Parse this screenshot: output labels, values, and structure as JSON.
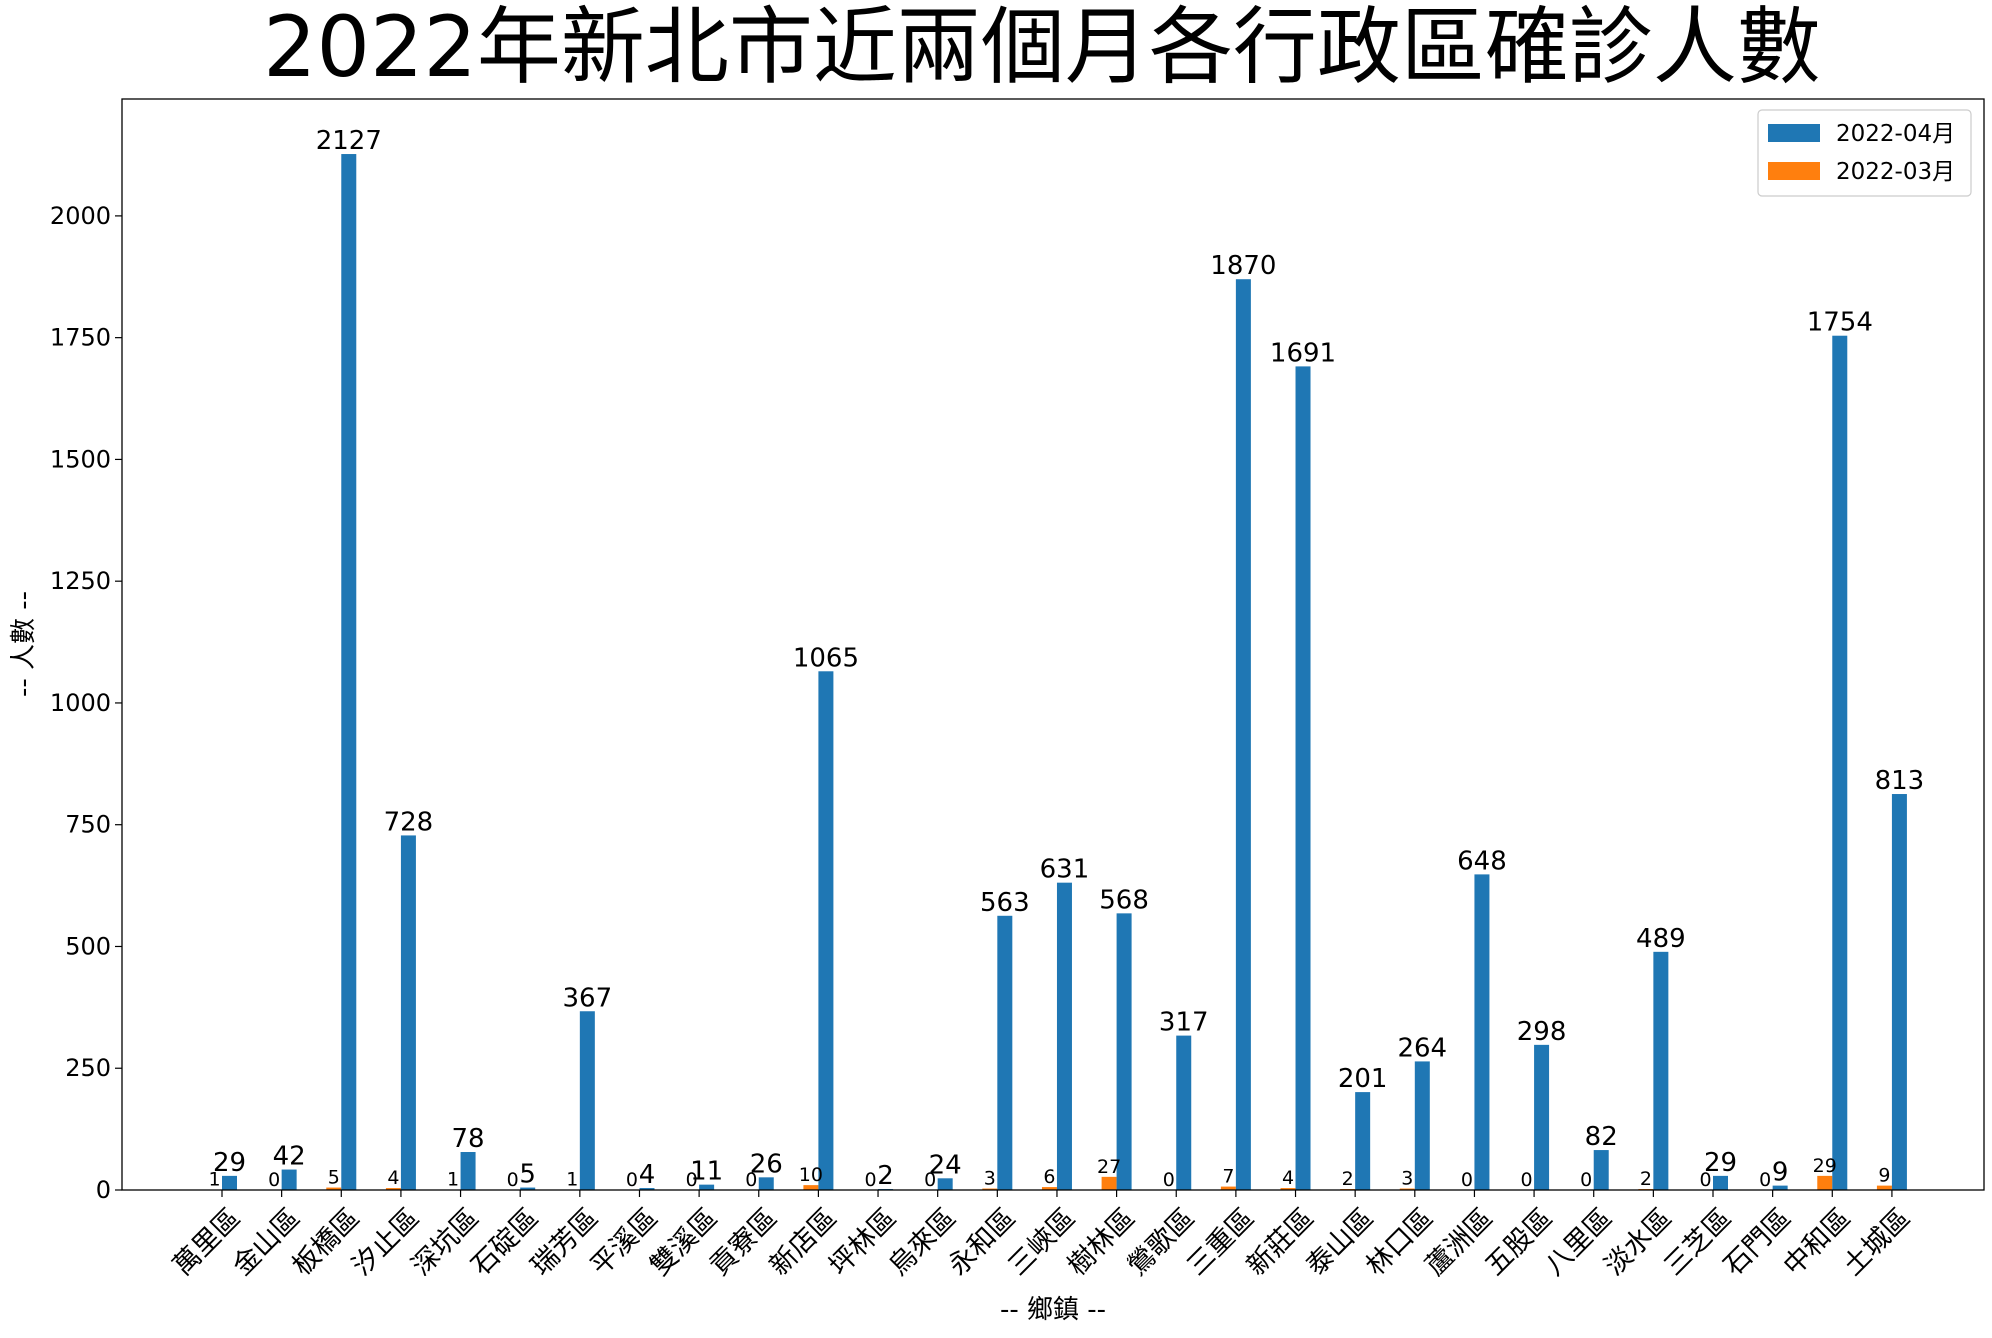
{
  "chart_data": {
    "type": "bar",
    "title": "2022年新北市近兩個月各行政區確診人數",
    "xlabel": "-- 鄉鎮 --",
    "ylabel": "-- 人數 --",
    "ylim": [
      0,
      2240
    ],
    "yticks": [
      0,
      250,
      500,
      750,
      1000,
      1250,
      1500,
      1750,
      2000
    ],
    "legend_position": "top-right",
    "grid": false,
    "categories": [
      "萬里區",
      "金山區",
      "板橋區",
      "汐止區",
      "深坑區",
      "石碇區",
      "瑞芳區",
      "平溪區",
      "雙溪區",
      "貢寮區",
      "新店區",
      "坪林區",
      "烏來區",
      "永和區",
      "三峽區",
      "樹林區",
      "鶯歌區",
      "三重區",
      "新莊區",
      "泰山區",
      "林口區",
      "蘆洲區",
      "五股區",
      "八里區",
      "淡水區",
      "三芝區",
      "石門區",
      "中和區",
      "土城區"
    ],
    "series": [
      {
        "name": "2022-04月",
        "color": "#1f77b4",
        "values": [
          29,
          42,
          2127,
          728,
          78,
          5,
          367,
          4,
          11,
          26,
          1065,
          2,
          24,
          563,
          631,
          568,
          317,
          1870,
          1691,
          201,
          264,
          648,
          298,
          82,
          489,
          29,
          9,
          1754,
          813
        ]
      },
      {
        "name": "2022-03月",
        "color": "#ff7f0e",
        "values": [
          1,
          0,
          5,
          4,
          1,
          0,
          1,
          0,
          0,
          0,
          10,
          0,
          0,
          3,
          6,
          27,
          0,
          7,
          4,
          2,
          3,
          0,
          0,
          0,
          2,
          0,
          0,
          29,
          9
        ]
      }
    ]
  }
}
